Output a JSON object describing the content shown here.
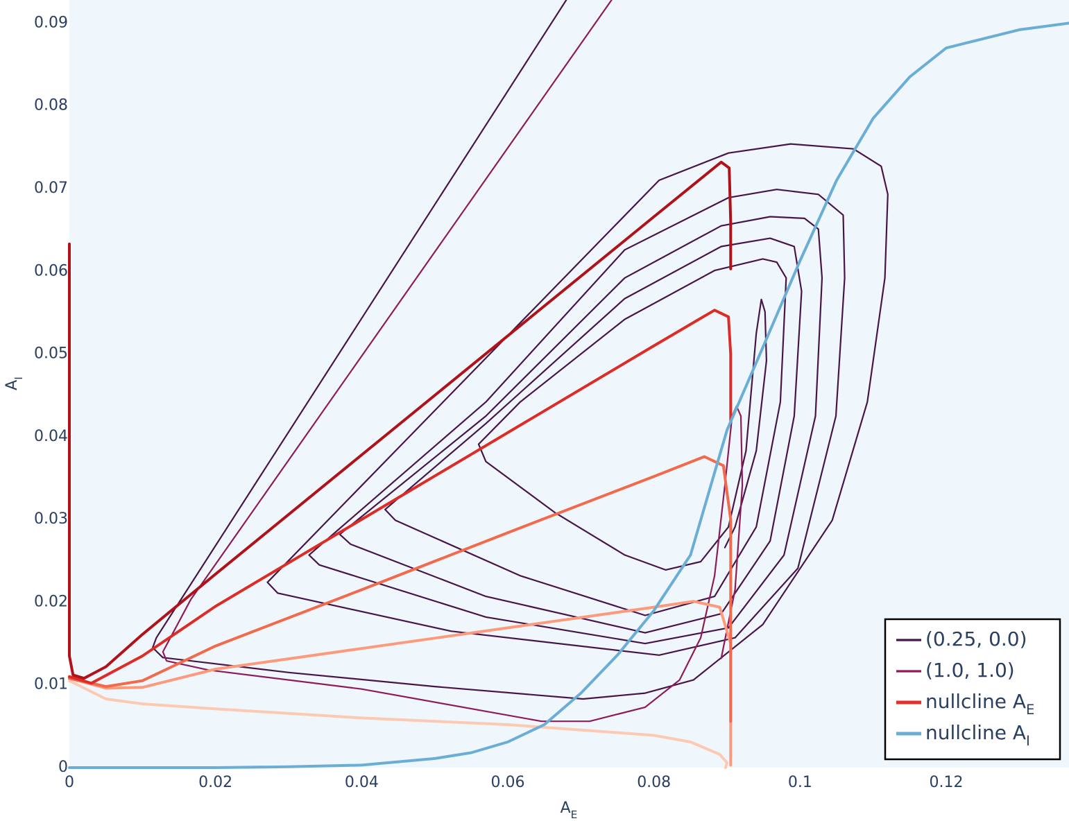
{
  "chart_data": {
    "type": "line",
    "xlabel": "A_E",
    "ylabel": "A_I",
    "xlim": [
      0,
      0.1368
    ],
    "ylim": [
      0,
      0.0928
    ],
    "xticks": [
      0,
      0.02,
      0.04,
      0.06,
      0.08,
      0.1,
      0.12
    ],
    "yticks": [
      0,
      0.01,
      0.02,
      0.03,
      0.04,
      0.05,
      0.06,
      0.07,
      0.08,
      0.09
    ],
    "grid": false,
    "legend": "bottom-right",
    "series": [
      {
        "name": "(0.25, 0.0)",
        "color": "#471547",
        "width": 2.2,
        "curves": [
          {
            "x": [
              0.068,
              0.0119,
              0.0114,
              0.0128,
              0.03,
              0.05,
              0.0703,
              0.0788,
              0.0854,
              0.0949,
              0.1044,
              0.1092,
              0.1116,
              0.112,
              0.1111,
              0.1073,
              0.0987,
              0.0902,
              0.0807,
              0.0271,
              0.0285,
              0.0522,
              0.0807,
              0.0911,
              0.0997,
              0.1049,
              0.1061,
              0.1059,
              0.1025,
              0.0968,
              0.0902,
              0.076,
              0.057,
              0.0328,
              0.0342,
              0.057,
              0.0788,
              0.0902,
              0.0978,
              0.1021,
              0.103,
              0.1025,
              0.1006,
              0.0959,
              0.0892,
              0.076,
              0.057,
              0.037,
              0.0385,
              0.057,
              0.0788,
              0.0892,
              0.0959,
              0.0992,
              0.1002,
              0.0992,
              0.0959,
              0.0892,
              0.076,
              0.057,
              0.0432,
              0.0446,
              0.0617,
              0.0788,
              0.0883,
              0.094,
              0.0973,
              0.0981,
              0.0968,
              0.0949,
              0.0883,
              0.076,
              0.0617,
              0.056,
              0.057,
              0.0665,
              0.076,
              0.0816,
              0.0864,
              0.0902,
              0.0926,
              0.094,
              0.0947,
              0.0952,
              0.0954,
              0.094,
              0.0911,
              0.0897
            ],
            "y": [
              0.0928,
              0.0157,
              0.0145,
              0.0133,
              0.0115,
              0.0098,
              0.0083,
              0.009,
              0.0106,
              0.0173,
              0.0299,
              0.0442,
              0.0592,
              0.0693,
              0.0727,
              0.0748,
              0.0754,
              0.0743,
              0.071,
              0.0224,
              0.0211,
              0.0165,
              0.0136,
              0.0157,
              0.0241,
              0.0425,
              0.0592,
              0.0668,
              0.0693,
              0.0699,
              0.0689,
              0.0626,
              0.0442,
              0.0257,
              0.0245,
              0.0182,
              0.015,
              0.0169,
              0.0257,
              0.0425,
              0.0592,
              0.0651,
              0.0664,
              0.0666,
              0.0655,
              0.0592,
              0.0425,
              0.0282,
              0.027,
              0.0207,
              0.0163,
              0.0186,
              0.0274,
              0.0425,
              0.0576,
              0.063,
              0.064,
              0.063,
              0.0567,
              0.0416,
              0.0312,
              0.0299,
              0.0232,
              0.0184,
              0.0207,
              0.0291,
              0.0442,
              0.0592,
              0.0611,
              0.0615,
              0.0601,
              0.0542,
              0.0442,
              0.0391,
              0.037,
              0.0308,
              0.0257,
              0.0239,
              0.0249,
              0.0291,
              0.0383,
              0.0525,
              0.0566,
              0.0551,
              0.0492,
              0.0383,
              0.0291,
              0.0266
            ]
          }
        ]
      },
      {
        "name": "(1.0, 1.0)",
        "color": "#8e1b57",
        "width": 2.2,
        "curves": [
          {
            "x": [
              0.0742,
              0.0166,
              0.0128,
              0.0133,
              0.019,
              0.04,
              0.0646,
              0.0712,
              0.0788,
              0.0835,
              0.0864,
              0.0883,
              0.0897,
              0.0907,
              0.0913,
              0.0919,
              0.0921,
              0.0911,
              0.0892
            ],
            "y": [
              0.0928,
              0.0203,
              0.014,
              0.0129,
              0.0118,
              0.0095,
              0.0056,
              0.0056,
              0.0073,
              0.0106,
              0.0157,
              0.0232,
              0.0341,
              0.0425,
              0.0437,
              0.0425,
              0.0341,
              0.0215,
              0.0132
            ]
          }
        ]
      },
      {
        "name": "nullcline A_E",
        "color": "#e3302a",
        "width": 4,
        "curves": [
          {
            "color": "#fdc9b3",
            "x": [
              0,
              0.005,
              0.01,
              0.02,
              0.04,
              0.06,
              0.08,
              0.085,
              0.089,
              0.09,
              0.0898
            ],
            "y": [
              0.0105,
              0.0083,
              0.0077,
              0.0071,
              0.006,
              0.0052,
              0.0039,
              0.0031,
              0.0016,
              0.0006,
              0
            ]
          },
          {
            "color": "#fc9a7b",
            "x": [
              0,
              0.005,
              0.01,
              0.02,
              0.04,
              0.06,
              0.08,
              0.0854,
              0.089,
              0.0905,
              0.0905
            ],
            "y": [
              0.0108,
              0.0096,
              0.0097,
              0.0119,
              0.0144,
              0.0169,
              0.0194,
              0.0201,
              0.0194,
              0.015,
              0.0003
            ]
          },
          {
            "color": "#f2694b",
            "x": [
              0,
              0.005,
              0.01,
              0.02,
              0.04,
              0.06,
              0.08,
              0.0869,
              0.0895,
              0.0905,
              0.0905
            ],
            "y": [
              0.0108,
              0.0098,
              0.0105,
              0.0147,
              0.0215,
              0.0284,
              0.0352,
              0.0376,
              0.0365,
              0.03,
              0.0056
            ]
          },
          {
            "color": "#dd2c25",
            "x": [
              0,
              0.003,
              0.01,
              0.02,
              0.04,
              0.06,
              0.08,
              0.0883,
              0.0902,
              0.0905,
              0.0905
            ],
            "y": [
              0.011,
              0.0102,
              0.0135,
              0.0195,
              0.03,
              0.0405,
              0.051,
              0.0553,
              0.0545,
              0.05,
              0.042
            ]
          },
          {
            "color": "#b0121a",
            "x": [
              0,
              0,
              0.0005,
              0.002,
              0.005,
              0.01,
              0.02,
              0.04,
              0.06,
              0.08,
              0.0892,
              0.0903,
              0.0905,
              0.0905
            ],
            "y": [
              0.0633,
              0.0135,
              0.0112,
              0.0108,
              0.0122,
              0.0161,
              0.0234,
              0.0378,
              0.0522,
              0.0666,
              0.0732,
              0.0725,
              0.066,
              0.0603
            ]
          }
        ]
      },
      {
        "name": "nullcline A_I",
        "color": "#6aaed6",
        "width": 4,
        "curves": [
          {
            "x": [
              0,
              0.02,
              0.03,
              0.04,
              0.05,
              0.055,
              0.06,
              0.065,
              0.07,
              0.075,
              0.08,
              0.085,
              0.09,
              0.095,
              0.1,
              0.105,
              0.11,
              0.115,
              0.12,
              0.13,
              0.1368
            ],
            "y": [
              0,
              0,
              0.0001,
              0.0003,
              0.0011,
              0.0018,
              0.0031,
              0.0052,
              0.009,
              0.0136,
              0.019,
              0.0257,
              0.0408,
              0.051,
              0.0613,
              0.071,
              0.0785,
              0.0835,
              0.087,
              0.0892,
              0.09
            ]
          }
        ]
      }
    ]
  }
}
